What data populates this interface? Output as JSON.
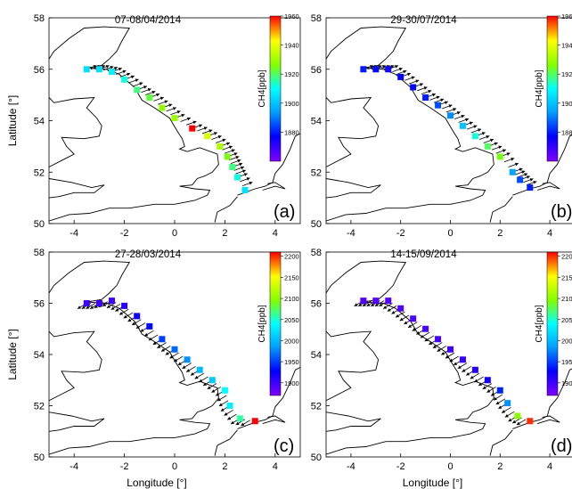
{
  "figure": {
    "xlabel": "Longitude [°]",
    "ylabel": "Latitude [°]",
    "colorbar_label": "CH4[ppb]"
  },
  "chart_data": [
    {
      "type": "scatter",
      "panel": "(a)",
      "title": "07-08/04/2014",
      "xlim": [
        -5,
        5
      ],
      "ylim": [
        50,
        58
      ],
      "xticks": [
        -4,
        -2,
        0,
        2,
        4
      ],
      "yticks": [
        50,
        52,
        54,
        56,
        58
      ],
      "colorbar": {
        "min": 1860,
        "max": 1960,
        "ticks": [
          1880,
          1900,
          1920,
          1940,
          1960
        ]
      },
      "series": [
        {
          "values": [
            [
              -3.5,
              56.0,
              1905
            ],
            [
              -3.0,
              56.0,
              1905
            ],
            [
              -2.5,
              55.9,
              1908
            ],
            [
              -2.0,
              55.6,
              1912
            ],
            [
              -1.5,
              55.2,
              1918
            ],
            [
              -1.0,
              54.9,
              1922
            ],
            [
              -0.5,
              54.5,
              1928
            ],
            [
              0.0,
              54.1,
              1930
            ],
            [
              0.7,
              53.7,
              1960
            ],
            [
              1.3,
              53.4,
              1938
            ],
            [
              1.8,
              53.0,
              1932
            ],
            [
              2.1,
              52.6,
              1925
            ],
            [
              2.3,
              52.2,
              1918
            ],
            [
              2.5,
              51.8,
              1912
            ],
            [
              2.8,
              51.3,
              1905
            ]
          ]
        }
      ]
    },
    {
      "type": "scatter",
      "panel": "(b)",
      "title": "29-30/07/2014",
      "xlim": [
        -5,
        5
      ],
      "ylim": [
        50,
        58
      ],
      "xticks": [
        -4,
        -2,
        0,
        2,
        4
      ],
      "yticks": [
        50,
        52,
        54,
        56,
        58
      ],
      "colorbar": {
        "min": 1860,
        "max": 1960,
        "ticks": [
          1880,
          1900,
          1920,
          1940,
          1960
        ]
      },
      "series": [
        {
          "values": [
            [
              -3.5,
              56.0,
              1880
            ],
            [
              -3.0,
              56.0,
              1878
            ],
            [
              -2.5,
              56.0,
              1875
            ],
            [
              -2.0,
              55.7,
              1876
            ],
            [
              -1.5,
              55.3,
              1878
            ],
            [
              -1.0,
              54.9,
              1880
            ],
            [
              -0.5,
              54.6,
              1885
            ],
            [
              0.0,
              54.2,
              1892
            ],
            [
              0.5,
              53.8,
              1900
            ],
            [
              1.0,
              53.4,
              1912
            ],
            [
              1.5,
              53.0,
              1920
            ],
            [
              2.0,
              52.6,
              1925
            ],
            [
              2.5,
              52.0,
              1895
            ],
            [
              2.8,
              51.7,
              1885
            ],
            [
              3.2,
              51.4,
              1880
            ]
          ]
        }
      ]
    },
    {
      "type": "scatter",
      "panel": "(c)",
      "title": "27-28/03/2014",
      "xlim": [
        -5,
        5
      ],
      "ylim": [
        50,
        58
      ],
      "xticks": [
        -4,
        -2,
        0,
        2,
        4
      ],
      "yticks": [
        50,
        52,
        54,
        56,
        58
      ],
      "colorbar": {
        "min": 1870,
        "max": 2210,
        "ticks": [
          1900,
          1950,
          2000,
          2050,
          2100,
          2150,
          2200
        ]
      },
      "series": [
        {
          "values": [
            [
              -3.5,
              56.0,
              1900
            ],
            [
              -3.0,
              56.0,
              1900
            ],
            [
              -2.5,
              56.1,
              1900
            ],
            [
              -2.0,
              55.9,
              1910
            ],
            [
              -1.5,
              55.5,
              1920
            ],
            [
              -1.0,
              55.1,
              1930
            ],
            [
              -0.5,
              54.6,
              1950
            ],
            [
              0.0,
              54.2,
              1965
            ],
            [
              0.5,
              53.8,
              1980
            ],
            [
              1.0,
              53.4,
              2000
            ],
            [
              1.5,
              53.0,
              2010
            ],
            [
              2.0,
              52.6,
              2040
            ],
            [
              2.2,
              52.0,
              2030
            ],
            [
              2.6,
              51.5,
              2060
            ],
            [
              3.2,
              51.4,
              2210
            ]
          ]
        }
      ]
    },
    {
      "type": "scatter",
      "panel": "(d)",
      "title": "14-15/09/2014",
      "xlim": [
        -5,
        5
      ],
      "ylim": [
        50,
        58
      ],
      "xticks": [
        -4,
        -2,
        0,
        2,
        4
      ],
      "yticks": [
        50,
        52,
        54,
        56,
        58
      ],
      "colorbar": {
        "min": 1870,
        "max": 2210,
        "ticks": [
          1900,
          1950,
          2000,
          2050,
          2100,
          2150,
          2200
        ]
      },
      "series": [
        {
          "values": [
            [
              -3.5,
              56.1,
              1890
            ],
            [
              -3.0,
              56.1,
              1890
            ],
            [
              -2.5,
              56.1,
              1890
            ],
            [
              -2.0,
              55.8,
              1892
            ],
            [
              -1.5,
              55.4,
              1893
            ],
            [
              -1.0,
              55.0,
              1895
            ],
            [
              -0.5,
              54.6,
              1897
            ],
            [
              0.0,
              54.2,
              1900
            ],
            [
              0.5,
              53.8,
              1905
            ],
            [
              1.0,
              53.4,
              1910
            ],
            [
              1.5,
              53.0,
              1920
            ],
            [
              2.0,
              52.6,
              1940
            ],
            [
              2.3,
              52.1,
              1980
            ],
            [
              2.7,
              51.6,
              2100
            ],
            [
              3.2,
              51.4,
              2200
            ]
          ]
        }
      ]
    }
  ]
}
